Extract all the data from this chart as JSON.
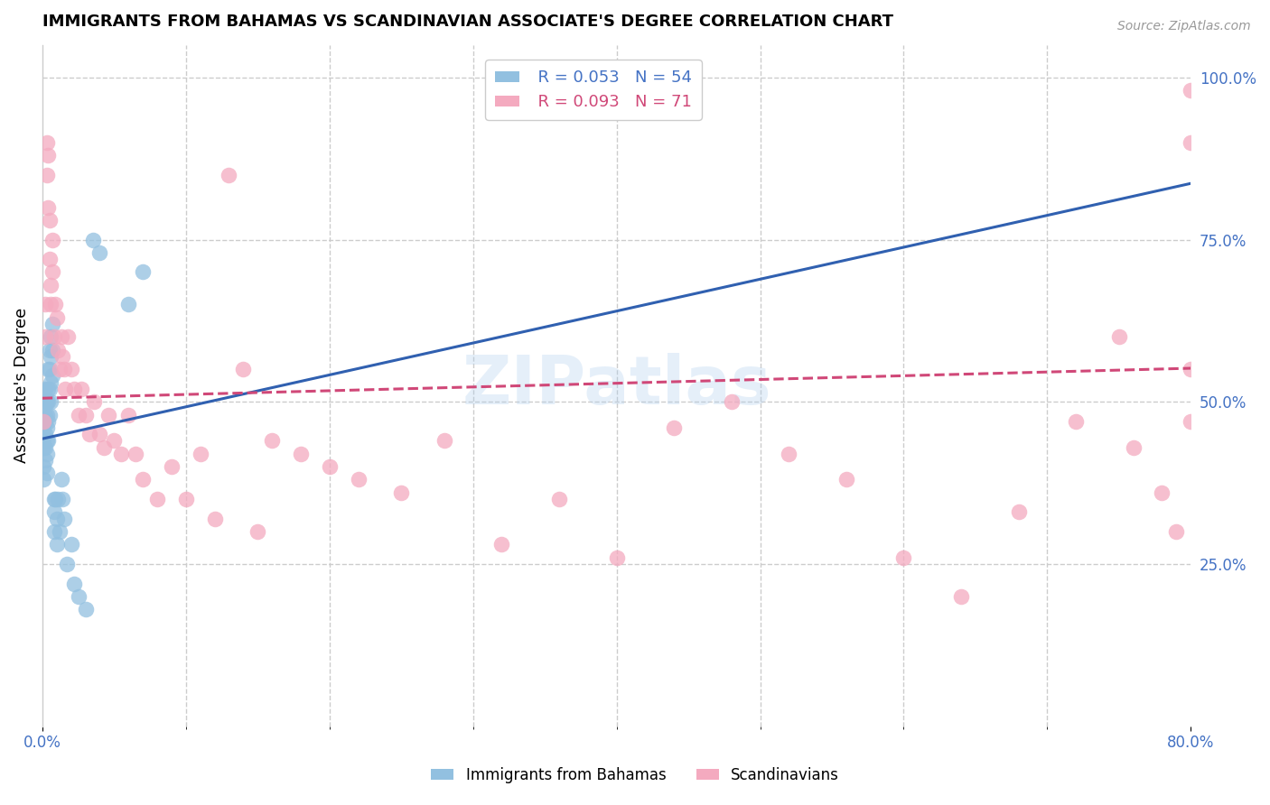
{
  "title": "IMMIGRANTS FROM BAHAMAS VS SCANDINAVIAN ASSOCIATE'S DEGREE CORRELATION CHART",
  "source": "Source: ZipAtlas.com",
  "ylabel": "Associate's Degree",
  "xlim": [
    0.0,
    0.8
  ],
  "ylim": [
    0.0,
    1.05
  ],
  "bahamas_R": 0.053,
  "bahamas_N": 54,
  "scandinavian_R": 0.093,
  "scandinavian_N": 71,
  "bahamas_color": "#92C0E0",
  "scandinavian_color": "#F4AABF",
  "bahamas_line_color": "#3060B0",
  "scandinavian_line_color": "#D04878",
  "grid_color": "#CCCCCC",
  "watermark": "ZIPatlas",
  "watermark_color": "#AACCEE",
  "bahamas_x": [
    0.001,
    0.001,
    0.001,
    0.001,
    0.001,
    0.002,
    0.002,
    0.002,
    0.002,
    0.002,
    0.002,
    0.002,
    0.003,
    0.003,
    0.003,
    0.003,
    0.003,
    0.003,
    0.004,
    0.004,
    0.004,
    0.004,
    0.004,
    0.005,
    0.005,
    0.005,
    0.005,
    0.006,
    0.006,
    0.006,
    0.006,
    0.007,
    0.007,
    0.007,
    0.008,
    0.008,
    0.008,
    0.009,
    0.01,
    0.01,
    0.011,
    0.012,
    0.013,
    0.014,
    0.015,
    0.017,
    0.02,
    0.022,
    0.025,
    0.03,
    0.035,
    0.04,
    0.06,
    0.07
  ],
  "bahamas_y": [
    0.46,
    0.44,
    0.43,
    0.4,
    0.38,
    0.52,
    0.5,
    0.48,
    0.47,
    0.45,
    0.43,
    0.41,
    0.5,
    0.48,
    0.46,
    0.44,
    0.42,
    0.39,
    0.55,
    0.52,
    0.5,
    0.47,
    0.44,
    0.58,
    0.55,
    0.52,
    0.48,
    0.6,
    0.57,
    0.53,
    0.5,
    0.62,
    0.58,
    0.54,
    0.35,
    0.33,
    0.3,
    0.35,
    0.32,
    0.28,
    0.35,
    0.3,
    0.38,
    0.35,
    0.32,
    0.25,
    0.28,
    0.22,
    0.2,
    0.18,
    0.75,
    0.73,
    0.65,
    0.7
  ],
  "scandinavian_x": [
    0.001,
    0.002,
    0.002,
    0.003,
    0.003,
    0.004,
    0.004,
    0.005,
    0.005,
    0.006,
    0.006,
    0.007,
    0.007,
    0.008,
    0.009,
    0.01,
    0.011,
    0.012,
    0.013,
    0.014,
    0.015,
    0.016,
    0.018,
    0.02,
    0.022,
    0.025,
    0.027,
    0.03,
    0.033,
    0.036,
    0.04,
    0.043,
    0.046,
    0.05,
    0.055,
    0.06,
    0.065,
    0.07,
    0.08,
    0.09,
    0.1,
    0.11,
    0.12,
    0.13,
    0.14,
    0.15,
    0.16,
    0.18,
    0.2,
    0.22,
    0.25,
    0.28,
    0.32,
    0.36,
    0.4,
    0.44,
    0.48,
    0.52,
    0.56,
    0.6,
    0.64,
    0.68,
    0.72,
    0.75,
    0.76,
    0.78,
    0.79,
    0.8,
    0.8,
    0.8,
    0.8
  ],
  "scandinavian_y": [
    0.47,
    0.65,
    0.6,
    0.85,
    0.9,
    0.88,
    0.8,
    0.78,
    0.72,
    0.68,
    0.65,
    0.75,
    0.7,
    0.6,
    0.65,
    0.63,
    0.58,
    0.55,
    0.6,
    0.57,
    0.55,
    0.52,
    0.6,
    0.55,
    0.52,
    0.48,
    0.52,
    0.48,
    0.45,
    0.5,
    0.45,
    0.43,
    0.48,
    0.44,
    0.42,
    0.48,
    0.42,
    0.38,
    0.35,
    0.4,
    0.35,
    0.42,
    0.32,
    0.85,
    0.55,
    0.3,
    0.44,
    0.42,
    0.4,
    0.38,
    0.36,
    0.44,
    0.28,
    0.35,
    0.26,
    0.46,
    0.5,
    0.42,
    0.38,
    0.26,
    0.2,
    0.33,
    0.47,
    0.6,
    0.43,
    0.36,
    0.3,
    0.47,
    0.98,
    0.9,
    0.55
  ]
}
